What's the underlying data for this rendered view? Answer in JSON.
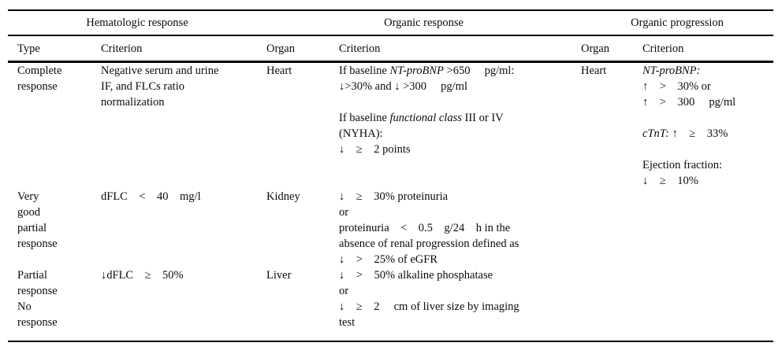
{
  "table": {
    "group_headers": [
      "Hematologic response",
      "Organic response",
      "Organic progression"
    ],
    "column_headers": [
      "Type",
      "Criterion",
      "Organ",
      "Criterion",
      "Organ",
      "Criterion"
    ],
    "rows": [
      {
        "cells": [
          [
            [
              "Complete"
            ],
            [
              "response"
            ]
          ],
          [
            [
              "Negative serum and urine"
            ],
            [
              "IF, and FLCs ratio"
            ],
            [
              "normalization"
            ]
          ],
          [
            [
              "Heart"
            ]
          ],
          [
            [
              "If baseline ",
              {
                "t": "NT-proBNP",
                "i": true
              },
              " >650     pg/ml:"
            ],
            [
              "↓>30% and ↓ >300     pg/ml"
            ],
            [],
            [
              "If baseline ",
              {
                "t": "functional class",
                "i": true
              },
              " III or IV"
            ],
            [
              "(NYHA):"
            ],
            [
              "↓    ≥    2 points"
            ]
          ],
          [
            [
              "Heart"
            ]
          ],
          [
            [
              {
                "t": "NT-proBNP:",
                "i": true
              }
            ],
            [
              "↑    >    30% or"
            ],
            [
              "↑    >    300     pg/ml"
            ],
            [],
            [
              {
                "t": "cTnT:",
                "i": true
              },
              " ↑    ≥    33%"
            ],
            [],
            [
              "Ejection fraction:"
            ],
            [
              "↓    ≥    10%"
            ]
          ]
        ]
      },
      {
        "cells": [
          [
            [
              "Very"
            ],
            [
              "good"
            ],
            [
              "partial"
            ],
            [
              "response"
            ]
          ],
          [
            [
              "dFLC    <    40    mg/l"
            ]
          ],
          [
            [
              "Kidney"
            ]
          ],
          [
            [
              "↓    ≥    30% proteinuria"
            ],
            [
              "or"
            ],
            [
              "proteinuria    <    0.5    g/24    h in the"
            ],
            [
              "absence of renal progression defined as"
            ],
            [
              "↓    >    25% of eGFR"
            ]
          ],
          [],
          []
        ]
      },
      {
        "cells": [
          [
            [
              "Partial"
            ],
            [
              "response"
            ],
            [
              "No"
            ],
            [
              "response"
            ]
          ],
          [
            [
              "↓dFLC    ≥    50%"
            ]
          ],
          [
            [
              "Liver"
            ]
          ],
          [
            [
              "↓    >    50% alkaline phosphatase"
            ],
            [
              "or"
            ],
            [
              "↓    ≥    2     cm of liver size by imaging"
            ],
            [
              "test"
            ]
          ],
          [],
          []
        ]
      }
    ]
  }
}
